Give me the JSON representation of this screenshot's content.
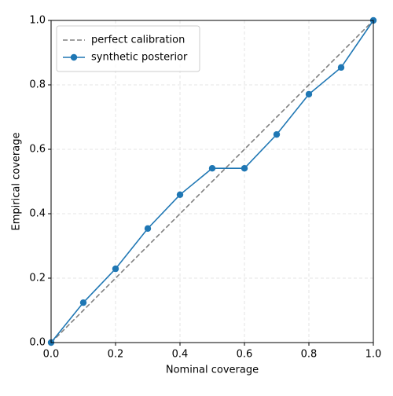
{
  "chart_data": {
    "type": "line",
    "x": [
      0.0,
      0.1,
      0.2,
      0.3,
      0.4,
      0.5,
      0.6,
      0.7,
      0.8,
      0.9,
      1.0
    ],
    "series": [
      {
        "name": "perfect calibration",
        "color": "#808080",
        "dash": true,
        "marker": false,
        "values": [
          0.0,
          0.1,
          0.2,
          0.3,
          0.4,
          0.5,
          0.6,
          0.7,
          0.8,
          0.9,
          1.0
        ]
      },
      {
        "name": "synthetic posterior",
        "color": "#1f77b4",
        "dash": false,
        "marker": true,
        "values": [
          0.0,
          0.124,
          0.229,
          0.354,
          0.459,
          0.541,
          0.541,
          0.646,
          0.771,
          0.854,
          1.0
        ]
      }
    ],
    "xlabel": "Nominal coverage",
    "ylabel": "Empirical coverage",
    "xlim": [
      0,
      1
    ],
    "ylim": [
      0,
      1
    ],
    "xticks": [
      {
        "value": 0,
        "label": "0.0"
      },
      0.2,
      0.4,
      0.6,
      0.8,
      {
        "value": 1,
        "label": "1.0"
      }
    ],
    "yticks": [
      {
        "value": 0,
        "label": "0.0"
      },
      0.2,
      0.4,
      0.6,
      0.8,
      {
        "value": 1,
        "label": "1.0"
      }
    ],
    "grid": true,
    "legend": "upper left"
  }
}
